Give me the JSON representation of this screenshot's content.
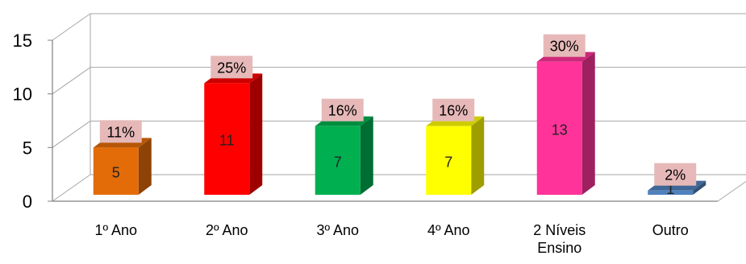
{
  "chart_data": {
    "type": "bar",
    "categories": [
      "1º Ano",
      "2º Ano",
      "3º Ano",
      "4º Ano",
      "2 Níveis Ensino",
      "Outro"
    ],
    "category_lines": [
      [
        "1º Ano"
      ],
      [
        "2º Ano"
      ],
      [
        "3º Ano"
      ],
      [
        "4º Ano"
      ],
      [
        "2 Níveis",
        "Ensino"
      ],
      [
        "Outro"
      ]
    ],
    "values": [
      5,
      11,
      7,
      7,
      13,
      1
    ],
    "value_labels": [
      "5",
      "11",
      "7",
      "7",
      "13",
      "1"
    ],
    "percent_labels": [
      "11%",
      "25%",
      "16%",
      "16%",
      "30%",
      "2%"
    ],
    "colors": [
      "#E36C09",
      "#FF0000",
      "#00B050",
      "#FFFF00",
      "#FF3399",
      "#4F81BD"
    ],
    "yticks": [
      "0",
      "5",
      "10",
      "15"
    ],
    "ylim": [
      0,
      15
    ],
    "grid": true,
    "title": "",
    "xlabel": "",
    "ylabel": ""
  }
}
